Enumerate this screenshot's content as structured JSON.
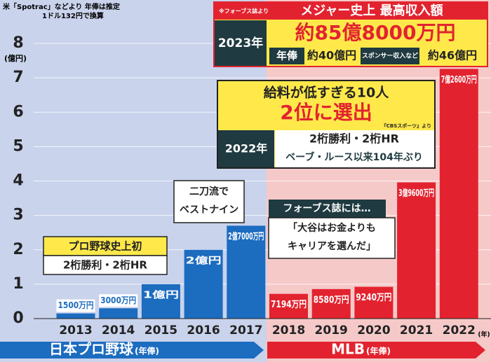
{
  "chart_data": {
    "type": "bar",
    "note": [
      "米「Spotrac」などより 年俸は推定",
      "1ドル132円で換算"
    ],
    "y_unit": "(億円)",
    "x_unit": "(年)",
    "categories": [
      "2013",
      "2014",
      "2015",
      "2016",
      "2017",
      "2018",
      "2019",
      "2020",
      "2021",
      "2022"
    ],
    "values": [
      0.15,
      0.3,
      1,
      2,
      2.7,
      0.7194,
      0.858,
      0.924,
      3.96,
      7.26
    ],
    "value_labels": [
      "1500万円",
      "3000万円",
      "1億円",
      "2億円",
      "2億7000万円",
      "7194万円",
      "8580万円",
      "9240万円",
      "3億9600万円",
      "7億2600万円"
    ],
    "colors": [
      "#1c6cc0",
      "#1c6cc0",
      "#1c6cc0",
      "#1c6cc0",
      "#1c6cc0",
      "#e2232f",
      "#e2232f",
      "#e2232f",
      "#e2232f",
      "#e2232f"
    ],
    "ylim": [
      0,
      8
    ],
    "yticks": [
      0,
      1,
      2,
      3,
      4,
      5,
      6,
      7,
      8
    ],
    "grid": true,
    "segments": [
      {
        "label": "日本プロ野球",
        "sub": "(年俸)"
      },
      {
        "label": "MLB",
        "sub": "(年俸)"
      }
    ],
    "annotations": {
      "forbes": {
        "source": "※フォーブス誌より",
        "title": "メジャー史上 最高収入額",
        "year": "2023年",
        "total": "約85億8000万円",
        "salary_tag": "年俸",
        "salary": "約40億円",
        "sponsor_tag": "スポンサー収入など",
        "sponsor": "約46億円"
      },
      "cbs": {
        "line1": "給料が低すぎる10人",
        "line2": "2位に選出",
        "source": "『CBSスポーツ』より",
        "year": "2022年",
        "feat1": "2桁勝利・2桁HR",
        "feat2": "ベーブ・ルース以来104年ぶり"
      },
      "quote": {
        "head": "フォーブス誌には…",
        "line1": "「大谷はお金よりも",
        "line2": "キャリアを選んだ」"
      },
      "best_nine": {
        "line1": "二刀流で",
        "line2": "ベストナイン"
      },
      "npb_first": {
        "head": "プロ野球史上初",
        "body": "2桁勝利・2桁HR"
      }
    }
  }
}
